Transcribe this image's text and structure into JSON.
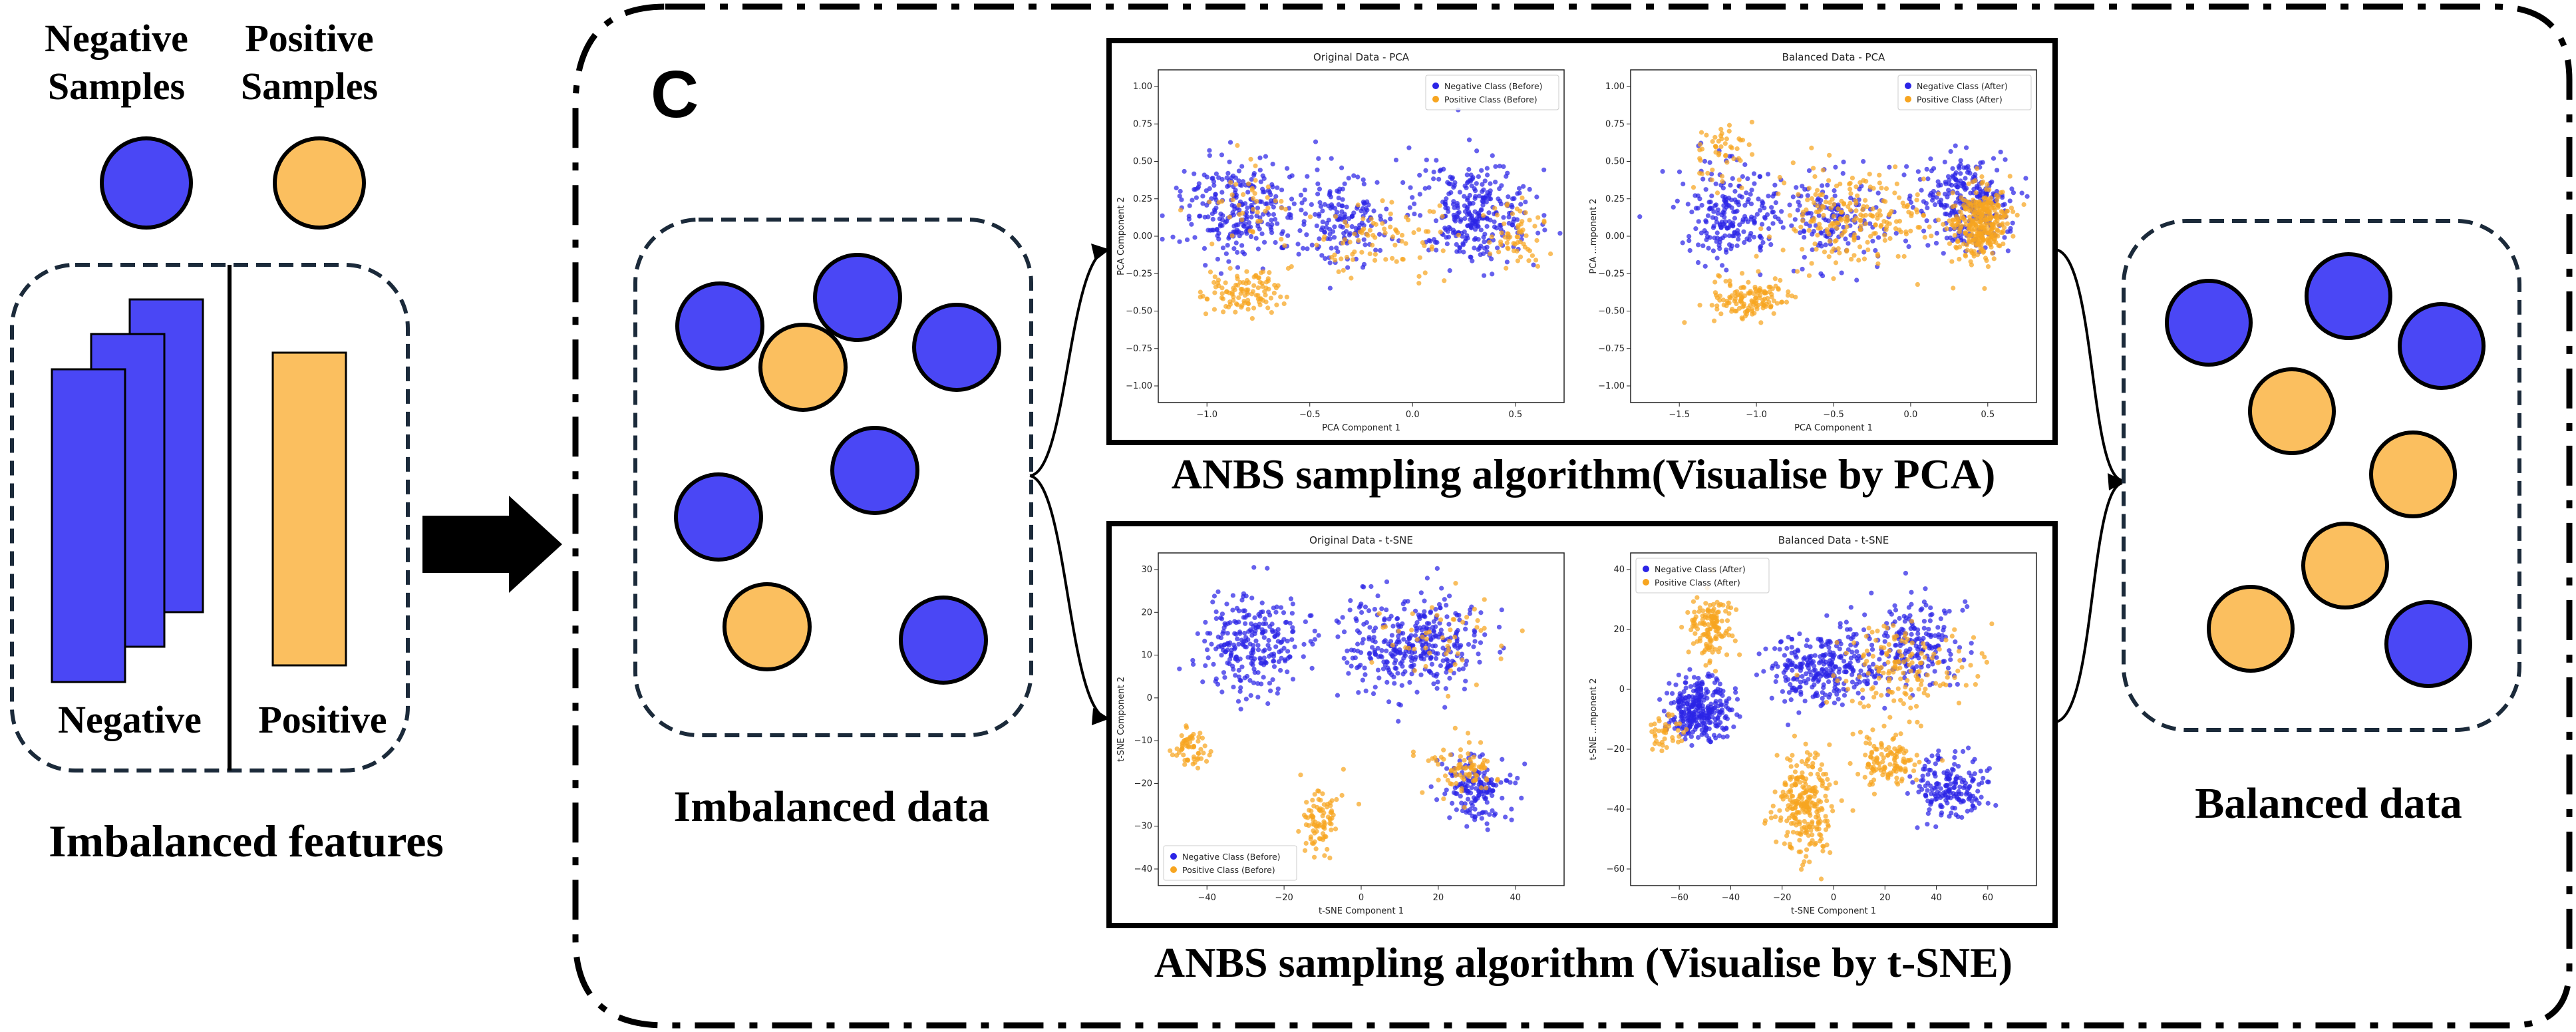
{
  "legend": {
    "negative_label": "Negative Samples",
    "positive_label": "Positive Samples",
    "negative_color": "#4a47f5",
    "positive_color": "#fbbf5f"
  },
  "left_panel": {
    "negative_caption": "Negative",
    "positive_caption": "Positive",
    "title": "Imbalanced features"
  },
  "panel_letter": "C",
  "imbalanced_title": "Imbalanced data",
  "balanced_title": "Balanced data",
  "pca_caption": "ANBS sampling algorithm(Visualise by PCA)",
  "tsne_caption": "ANBS sampling algorithm (Visualise by t-SNE)",
  "chart_data": [
    {
      "type": "scatter",
      "title": "Original Data - PCA",
      "xlabel": "PCA Component 1",
      "ylabel": "PCA Component 2",
      "xticks": [
        "−1.0",
        "−0.5",
        "0.0",
        "0.5"
      ],
      "yticks": [
        "1.00",
        "0.75",
        "0.50",
        "0.25",
        "0.00",
        "−0.25",
        "−0.50",
        "−0.75",
        "−1.00"
      ],
      "legend_position": "top-right",
      "series": [
        {
          "name": "Negative Class (Before)",
          "color": "#2b24e6"
        },
        {
          "name": "Positive Class (Before)",
          "color": "#f7a520"
        }
      ]
    },
    {
      "type": "scatter",
      "title": "Balanced Data - PCA",
      "xlabel": "PCA Component 1",
      "ylabel": "PCA ...mponent 2",
      "xticks": [
        "−1.5",
        "−1.0",
        "−0.5",
        "0.0",
        "0.5"
      ],
      "yticks": [
        "1.00",
        "0.75",
        "0.50",
        "0.25",
        "0.00",
        "−0.25",
        "−0.50",
        "−0.75",
        "−1.00"
      ],
      "legend_position": "top-right",
      "series": [
        {
          "name": "Negative Class (After)",
          "color": "#2b24e6"
        },
        {
          "name": "Positive Class (After)",
          "color": "#f7a520"
        }
      ]
    },
    {
      "type": "scatter",
      "title": "Original Data - t-SNE",
      "xlabel": "t-SNE Component 1",
      "ylabel": "t-SNE Component 2",
      "xticks": [
        "−40",
        "−20",
        "0",
        "20",
        "40"
      ],
      "yticks": [
        "30",
        "20",
        "10",
        "0",
        "−10",
        "−20",
        "−30",
        "−40"
      ],
      "legend_position": "bottom-left",
      "series": [
        {
          "name": "Negative Class (Before)",
          "color": "#2b24e6"
        },
        {
          "name": "Positive Class (Before)",
          "color": "#f7a520"
        }
      ]
    },
    {
      "type": "scatter",
      "title": "Balanced Data - t-SNE",
      "xlabel": "t-SNE Component 1",
      "ylabel": "t-SNE ...mponent 2",
      "xticks": [
        "−60",
        "−40",
        "−20",
        "0",
        "20",
        "40",
        "60"
      ],
      "yticks": [
        "40",
        "20",
        "0",
        "−20",
        "−40",
        "−60"
      ],
      "legend_position": "top-left",
      "series": [
        {
          "name": "Negative Class (After)",
          "color": "#2b24e6"
        },
        {
          "name": "Positive Class (After)",
          "color": "#f7a520"
        }
      ]
    }
  ]
}
